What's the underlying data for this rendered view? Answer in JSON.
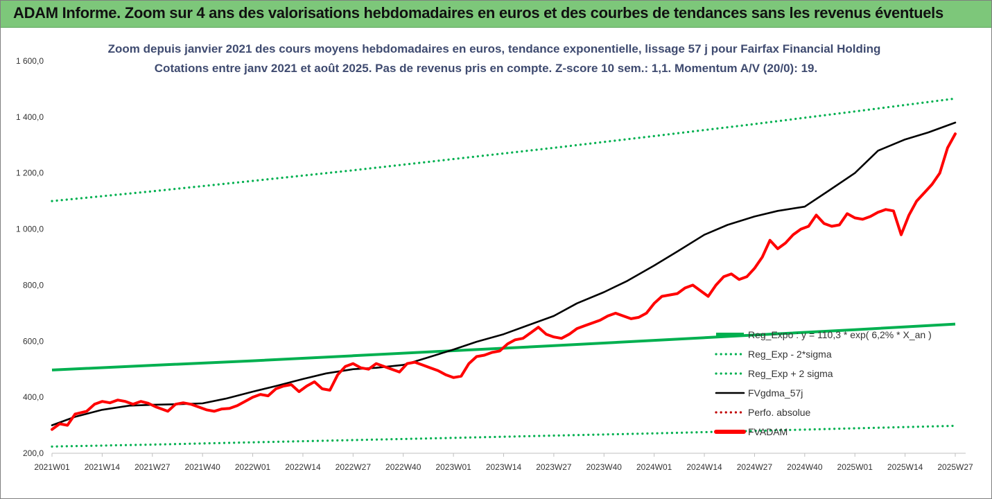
{
  "banner": {
    "title": "ADAM Informe. Zoom sur 4 ans des valorisations hebdomadaires en euros et des courbes de tendances sans les revenus éventuels"
  },
  "colors": {
    "banner_bg": "#7dc77a",
    "reg_expo": "#00b050",
    "fv_adam": "#ff0000",
    "fvgdma": "#000000",
    "perfo": "#c00000",
    "subtitle": "#3f4b70"
  },
  "chart_data": {
    "type": "line",
    "subtitle_line1": "Zoom depuis janvier 2021 des cours moyens hebdomadaires en euros, tendance exponentielle, lissage 57 j pour Fairfax Financial Holding",
    "subtitle_line2": "Cotations entre janv 2021 et août 2025. Pas de revenus pris en compte. Z-score 10 sem.: 1,1. Momentum A/V (20/0): 19.",
    "ylim": [
      200,
      1600
    ],
    "ytick_values": [
      200,
      400,
      600,
      800,
      1000,
      1200,
      1400,
      1600
    ],
    "ytick_labels": [
      "200,0",
      "400,0",
      "600,0",
      "800,0",
      "1 000,0",
      "1 200,0",
      "1 400,0",
      "1 600,0"
    ],
    "x_categories": [
      "2021W01",
      "2021W14",
      "2021W27",
      "2021W40",
      "2022W01",
      "2022W14",
      "2022W27",
      "2022W40",
      "2023W01",
      "2023W14",
      "2023W27",
      "2023W40",
      "2024W01",
      "2024W14",
      "2024W27",
      "2024W40",
      "2025W01",
      "2025W14",
      "2025W27"
    ],
    "legend_position": "bottom-right",
    "grid": false,
    "series": [
      {
        "name": "Reg_Expo : y = 110,3 * exp( 6,2% * X_an )",
        "style": "solid-thick",
        "color": "#00b050",
        "x": [
          0,
          26,
          52,
          78,
          104,
          130,
          156,
          182,
          208,
          234
        ],
        "y": [
          497,
          514,
          530,
          548,
          566,
          584,
          603,
          622,
          641,
          661
        ]
      },
      {
        "name": "Reg_Exp - 2*sigma",
        "style": "dotted",
        "color": "#00b050",
        "x": [
          0,
          26,
          52,
          78,
          104,
          130,
          156,
          182,
          208,
          234
        ],
        "y": [
          224,
          231,
          239,
          247,
          255,
          263,
          271,
          280,
          289,
          298
        ]
      },
      {
        "name": "Reg_Exp + 2 sigma",
        "style": "dotted",
        "color": "#00b050",
        "x": [
          0,
          26,
          52,
          78,
          104,
          130,
          156,
          182,
          208,
          234
        ],
        "y": [
          1100,
          1135,
          1172,
          1210,
          1250,
          1290,
          1332,
          1375,
          1420,
          1466
        ]
      },
      {
        "name": "FVgdma_57j",
        "style": "solid",
        "color": "#000000",
        "x": [
          0,
          6,
          13,
          20,
          26,
          32,
          39,
          45,
          52,
          58,
          65,
          71,
          78,
          84,
          91,
          97,
          104,
          110,
          117,
          123,
          130,
          136,
          143,
          149,
          156,
          162,
          169,
          175,
          182,
          188,
          195,
          201,
          208,
          214,
          221,
          227,
          234
        ],
        "y": [
          300,
          330,
          355,
          370,
          373,
          375,
          378,
          395,
          420,
          440,
          465,
          485,
          500,
          505,
          515,
          540,
          570,
          598,
          625,
          655,
          690,
          735,
          775,
          815,
          870,
          920,
          980,
          1015,
          1045,
          1065,
          1080,
          1135,
          1200,
          1280,
          1320,
          1345,
          1380
        ]
      },
      {
        "name": "Perfo. absolue",
        "style": "dotted",
        "color": "#c00000",
        "x": [],
        "y": []
      },
      {
        "name": "FVADAM",
        "style": "solid-thick",
        "color": "#ff0000",
        "x": [
          0,
          2,
          4,
          6,
          9,
          11,
          13,
          15,
          17,
          19,
          21,
          23,
          25,
          27,
          30,
          32,
          34,
          36,
          38,
          40,
          42,
          44,
          46,
          48,
          50,
          52,
          54,
          56,
          58,
          60,
          62,
          64,
          66,
          68,
          70,
          72,
          74,
          76,
          78,
          80,
          82,
          84,
          86,
          88,
          90,
          92,
          94,
          96,
          98,
          100,
          102,
          104,
          106,
          108,
          110,
          112,
          114,
          116,
          118,
          120,
          122,
          124,
          126,
          128,
          130,
          132,
          134,
          136,
          138,
          140,
          142,
          144,
          146,
          148,
          150,
          152,
          154,
          156,
          158,
          160,
          162,
          164,
          166,
          168,
          170,
          172,
          174,
          176,
          178,
          180,
          182,
          184,
          186,
          188,
          190,
          192,
          194,
          196,
          198,
          200,
          202,
          204,
          206,
          208,
          210,
          212,
          214,
          216,
          218,
          220,
          222,
          224,
          226,
          228,
          230,
          232,
          234
        ],
        "y": [
          285,
          305,
          300,
          340,
          350,
          375,
          385,
          380,
          390,
          385,
          375,
          385,
          378,
          365,
          350,
          375,
          380,
          375,
          365,
          355,
          350,
          358,
          360,
          370,
          385,
          400,
          410,
          405,
          430,
          440,
          445,
          420,
          440,
          455,
          430,
          425,
          480,
          510,
          520,
          505,
          500,
          520,
          510,
          500,
          490,
          520,
          525,
          515,
          505,
          495,
          480,
          470,
          475,
          520,
          545,
          550,
          560,
          565,
          590,
          605,
          610,
          630,
          650,
          625,
          615,
          610,
          625,
          645,
          655,
          665,
          675,
          690,
          700,
          690,
          680,
          685,
          700,
          735,
          760,
          765,
          770,
          790,
          800,
          780,
          760,
          800,
          830,
          840,
          820,
          830,
          860,
          900,
          960,
          930,
          950,
          980,
          1000,
          1010,
          1050,
          1020,
          1010,
          1015,
          1055,
          1040,
          1035,
          1045,
          1060,
          1070,
          1065,
          980,
          1050,
          1100,
          1130,
          1160,
          1200,
          1290,
          1340
        ]
      }
    ]
  }
}
